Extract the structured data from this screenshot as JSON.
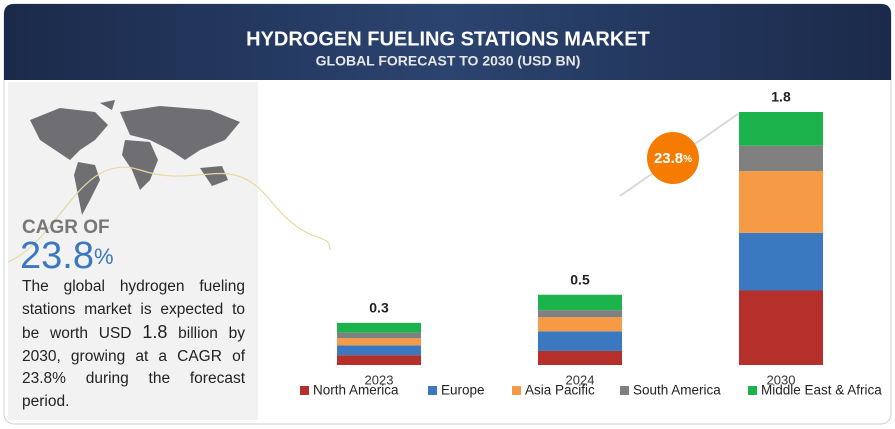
{
  "title": "HYDROGEN FUELING STATIONS MARKET",
  "subtitle": "GLOBAL FORECAST TO 2030 (USD BN)",
  "cagr": {
    "label": "CAGR OF",
    "value": "23.8",
    "unit": "%"
  },
  "description": {
    "before": "The global hydrogen fueling stations market is expected to be worth USD ",
    "highlight": "1.8",
    "after": " billion by 2030, growing at a CAGR of 23.8% during the forecast period."
  },
  "chart_data": {
    "type": "stacked_bar",
    "categories": [
      "2023",
      "2024",
      "2030"
    ],
    "totals": [
      0.3,
      0.5,
      1.8
    ],
    "series": [
      {
        "name": "North America",
        "color": "#b5302a",
        "values": [
          0.07,
          0.1,
          0.53
        ]
      },
      {
        "name": "Europe",
        "color": "#3a78c0",
        "values": [
          0.07,
          0.14,
          0.41
        ]
      },
      {
        "name": "Asia Pacific",
        "color": "#f79a45",
        "values": [
          0.05,
          0.1,
          0.44
        ]
      },
      {
        "name": "South America",
        "color": "#808080",
        "values": [
          0.04,
          0.05,
          0.18
        ]
      },
      {
        "name": "Middle East & Africa",
        "color": "#1cb24c",
        "values": [
          0.07,
          0.11,
          0.24
        ]
      }
    ],
    "ylim": [
      0,
      1.8
    ],
    "annotation": {
      "value": "23.8",
      "unit": "%",
      "color": "#f57c00"
    }
  }
}
